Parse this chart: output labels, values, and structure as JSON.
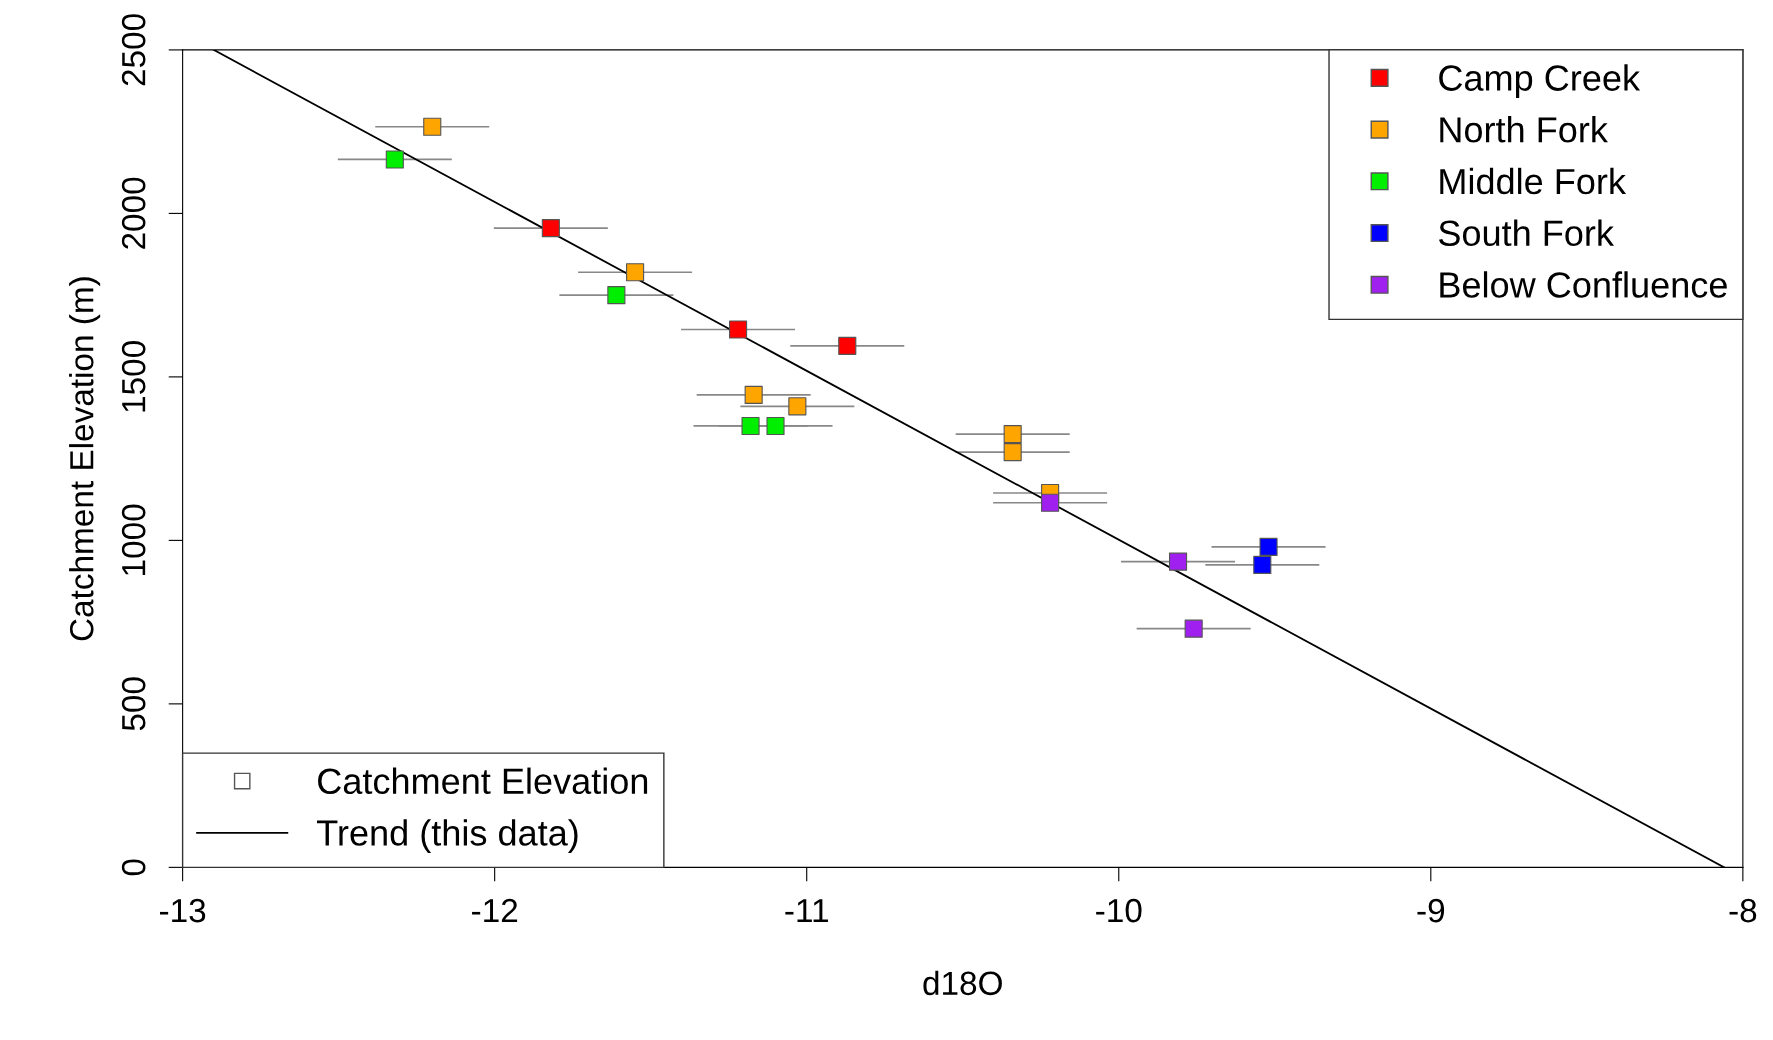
{
  "chart_data": {
    "type": "scatter",
    "xlabel": "d18O",
    "ylabel": "Catchment Elevation (m)",
    "xlim": [
      -13,
      -8
    ],
    "ylim": [
      0,
      2500
    ],
    "xticks": [
      -13,
      -12,
      -11,
      -10,
      -9,
      -8
    ],
    "yticks": [
      0,
      500,
      1000,
      1500,
      2000,
      2500
    ],
    "grid": false,
    "marker": "square",
    "legend": "top right",
    "annotations": [
      "Catchment Elevation"
    ],
    "series": [
      {
        "name": "Camp Creek",
        "color": "#ff0000",
        "x": [
          -11.82,
          -11.22,
          -10.87
        ],
        "values": [
          1955,
          1645,
          1595
        ],
        "xerrors": [
          0.18,
          0.18,
          0.18
        ]
      },
      {
        "name": "North Fork",
        "color": "#ffa500",
        "x": [
          -12.2,
          -11.55,
          -11.17,
          -11.03,
          -10.34,
          -10.34,
          -10.22
        ],
        "values": [
          2265,
          1820,
          1445,
          1410,
          1325,
          1270,
          1145
        ],
        "xerrors": [
          0.18,
          0.18,
          0.18,
          0.18,
          0.18,
          0.18,
          0.18
        ]
      },
      {
        "name": "Middle Fork",
        "color": "#00ee00",
        "x": [
          -12.32,
          -11.61,
          -11.18,
          -11.1
        ],
        "values": [
          2165,
          1750,
          1350,
          1350
        ],
        "xerrors": [
          0.18,
          0.18,
          0.18,
          0.18
        ]
      },
      {
        "name": "South Fork",
        "color": "#0000ff",
        "x": [
          -9.52,
          -9.54
        ],
        "values": [
          980,
          925
        ],
        "xerrors": [
          0.18,
          0.18
        ]
      },
      {
        "name": "Below Confluence",
        "color": "#a020f0",
        "x": [
          -10.22,
          -9.81,
          -9.76
        ],
        "values": [
          1115,
          935,
          730
        ],
        "xerrors": [
          0.18,
          0.18,
          0.18
        ]
      },
      {
        "name": "Trend (this data)",
        "type": "line",
        "color": "#000000",
        "x": [
          -12.9,
          -8.06
        ],
        "values": [
          2500,
          0
        ],
        "line_style": "solid",
        "marker": "none"
      }
    ]
  }
}
